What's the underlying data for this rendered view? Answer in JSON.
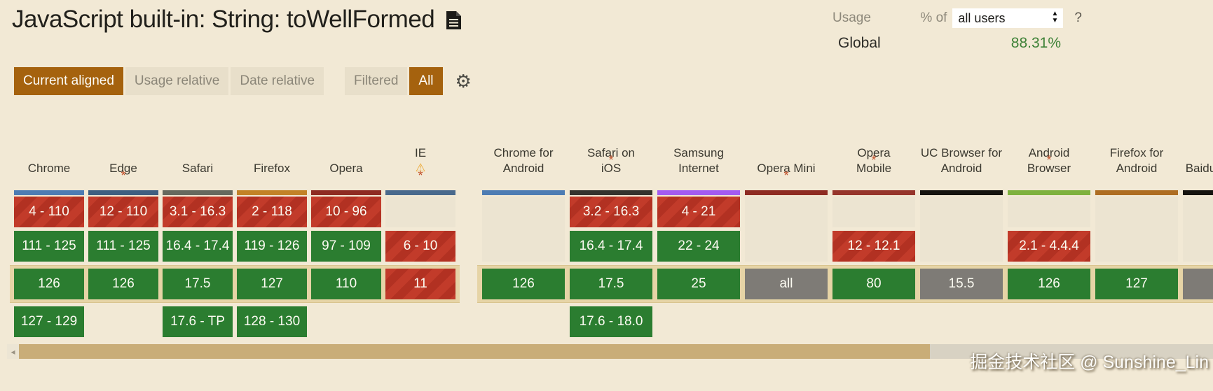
{
  "header": {
    "title": "JavaScript built-in: String: toWellFormed",
    "usage_label": "Usage",
    "percent_of": "% of",
    "usage_select": "all users",
    "help": "?",
    "global_label": "Global",
    "global_value": "88.31%"
  },
  "toolbar": {
    "view_buttons": [
      {
        "label": "Current aligned",
        "active": true
      },
      {
        "label": "Usage relative",
        "active": false
      },
      {
        "label": "Date relative",
        "active": false
      }
    ],
    "filter_buttons": [
      {
        "label": "Filtered",
        "active": false
      },
      {
        "label": "All",
        "active": true
      }
    ]
  },
  "colors": {
    "supported": "#2b7d30",
    "unsupported": "#c23b2a",
    "unknown": "#7e7b76",
    "active_button": "#a5620e",
    "current_row_band": "#e6d4a6",
    "global_value_green": "#3d8136"
  },
  "tables": {
    "current_row_index": 2,
    "desktop": [
      {
        "name": "Chrome",
        "brand": "#4d7cb3",
        "cells": [
          {
            "text": "4 - 110",
            "type": "unsupported"
          },
          {
            "text": "111 - 125",
            "type": "supported"
          },
          {
            "text": "126",
            "type": "supported"
          },
          {
            "text": "127 - 129",
            "type": "supported"
          }
        ]
      },
      {
        "name": "Edge*",
        "brand": "#3f5f80",
        "cells": [
          {
            "text": "12 - 110",
            "type": "unsupported"
          },
          {
            "text": "111 - 125",
            "type": "supported"
          },
          {
            "text": "126",
            "type": "supported"
          },
          null
        ]
      },
      {
        "name": "Safari",
        "brand": "#66695e",
        "cells": [
          {
            "text": "3.1 - 16.3",
            "type": "unsupported"
          },
          {
            "text": "16.4 - 17.4",
            "type": "supported"
          },
          {
            "text": "17.5",
            "type": "supported"
          },
          {
            "text": "17.6 - TP",
            "type": "supported"
          }
        ]
      },
      {
        "name": "Firefox",
        "brand": "#c28227",
        "cells": [
          {
            "text": "2 - 118",
            "type": "unsupported"
          },
          {
            "text": "119 - 126",
            "type": "supported"
          },
          {
            "text": "127",
            "type": "supported"
          },
          {
            "text": "128 - 130",
            "type": "supported"
          }
        ]
      },
      {
        "name": "Opera",
        "brand": "#8e2b22",
        "cells": [
          {
            "text": "10 - 96",
            "type": "unsupported"
          },
          {
            "text": "97 - 109",
            "type": "supported"
          },
          {
            "text": "110",
            "type": "supported"
          },
          null
        ]
      },
      {
        "name": "IE ⚠*",
        "brand": "#49698c",
        "cells": [
          null,
          {
            "text": "6 - 10",
            "type": "unsupported"
          },
          {
            "text": "11",
            "type": "unsupported"
          },
          null
        ]
      }
    ],
    "mobile": [
      {
        "name": "Chrome for Android",
        "brand": "#4d7cb3",
        "cells": [
          null,
          null,
          {
            "text": "126",
            "type": "supported"
          },
          null
        ]
      },
      {
        "name": "Safari on* iOS",
        "brand": "#34332e",
        "cells": [
          {
            "text": "3.2 - 16.3",
            "type": "unsupported"
          },
          {
            "text": "16.4 - 17.4",
            "type": "supported"
          },
          {
            "text": "17.5",
            "type": "supported"
          },
          {
            "text": "17.6 - 18.0",
            "type": "supported"
          }
        ]
      },
      {
        "name": "Samsung Internet",
        "brand": "#a35bf1",
        "cells": [
          {
            "text": "4 - 21",
            "type": "unsupported"
          },
          {
            "text": "22 - 24",
            "type": "supported"
          },
          {
            "text": "25",
            "type": "supported"
          },
          null
        ]
      },
      {
        "name": "Opera Mini*",
        "brand": "#8e2b22",
        "cells": [
          null,
          null,
          {
            "text": "all",
            "type": "unknown"
          },
          null
        ]
      },
      {
        "name": "Opera* Mobile",
        "brand": "#96352b",
        "cells": [
          null,
          {
            "text": "12 - 12.1",
            "type": "unsupported"
          },
          {
            "text": "80",
            "type": "supported"
          },
          null
        ]
      },
      {
        "name": "UC Browser for Android",
        "brand": "#15130f",
        "cells": [
          null,
          null,
          {
            "text": "15.5",
            "type": "unknown"
          },
          null
        ]
      },
      {
        "name": "Android* Browser",
        "brand": "#7eb13e",
        "cells": [
          null,
          {
            "text": "2.1 - 4.4.4",
            "type": "unsupported"
          },
          {
            "text": "126",
            "type": "supported"
          },
          null
        ]
      },
      {
        "name": "Firefox for Android",
        "brand": "#ae6d22",
        "cells": [
          null,
          null,
          {
            "text": "127",
            "type": "supported"
          },
          null
        ]
      },
      {
        "name": "Baidu Browser",
        "brand": "#15130f",
        "cells": [
          null,
          null,
          {
            "text": "",
            "type": "unknown"
          },
          null
        ]
      }
    ]
  },
  "scrollbar": {
    "left_arrow": "◂"
  },
  "watermark": "掘金技术社区 @ Sunshine_Lin"
}
